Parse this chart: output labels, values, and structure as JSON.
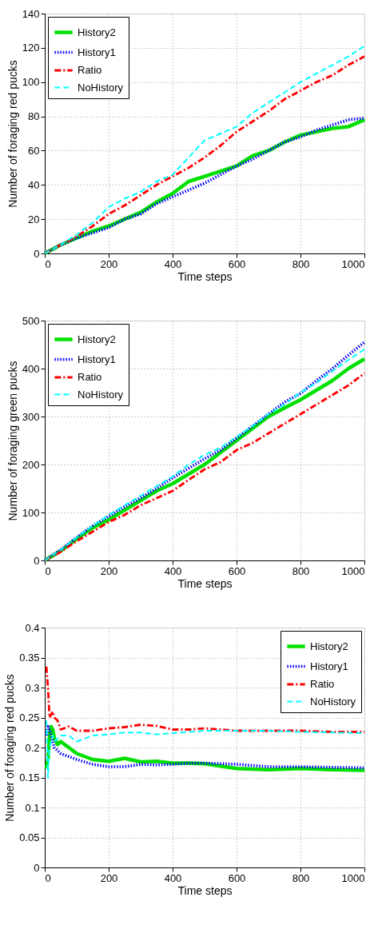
{
  "chart_data": [
    {
      "type": "line",
      "xlabel": "Time steps",
      "ylabel": "Number of foraging red pucks",
      "xlim": [
        0,
        1000
      ],
      "xticks": [
        0,
        200,
        400,
        600,
        800,
        1000
      ],
      "ylim": [
        0,
        140
      ],
      "yticks": [
        0,
        20,
        40,
        60,
        80,
        100,
        120,
        140
      ],
      "grid": true,
      "legend": "top left",
      "x": [
        0,
        50,
        100,
        150,
        200,
        250,
        300,
        350,
        400,
        450,
        500,
        550,
        600,
        650,
        700,
        750,
        800,
        850,
        900,
        950,
        1000
      ],
      "series": [
        {
          "name": "History2",
          "color": "#00e000",
          "line_style": "solid",
          "values": [
            0,
            5,
            9,
            13,
            16,
            20,
            24,
            30,
            35,
            42,
            45,
            48,
            51,
            57,
            60,
            65,
            69,
            71,
            73,
            74,
            78
          ]
        },
        {
          "name": "History1",
          "color": "#0000ff",
          "line_style": "dotted",
          "values": [
            0,
            5,
            9,
            12,
            15,
            20,
            23,
            29,
            33,
            37,
            41,
            46,
            51,
            55,
            60,
            65,
            68,
            72,
            75,
            78,
            79
          ]
        },
        {
          "name": "Ratio",
          "color": "#ff0000",
          "line_style": "dashdot",
          "values": [
            0,
            5,
            10,
            16,
            23,
            28,
            34,
            40,
            45,
            50,
            56,
            63,
            71,
            77,
            83,
            90,
            95,
            100,
            104,
            110,
            115
          ]
        },
        {
          "name": "NoHistory",
          "color": "#00ffff",
          "line_style": "dashed",
          "values": [
            0,
            5,
            11,
            18,
            27,
            32,
            36,
            42,
            46,
            56,
            66,
            70,
            74,
            82,
            88,
            94,
            100,
            105,
            110,
            115,
            121
          ]
        }
      ]
    },
    {
      "type": "line",
      "xlabel": "Time steps",
      "ylabel": "Number of foraging green pucks",
      "xlim": [
        0,
        1000
      ],
      "xticks": [
        0,
        200,
        400,
        600,
        800,
        1000
      ],
      "ylim": [
        0,
        500
      ],
      "yticks": [
        0,
        100,
        200,
        300,
        400,
        500
      ],
      "grid": true,
      "legend": "top left",
      "x": [
        0,
        50,
        100,
        150,
        200,
        250,
        300,
        350,
        400,
        450,
        500,
        550,
        600,
        650,
        700,
        750,
        800,
        850,
        900,
        950,
        1000
      ],
      "series": [
        {
          "name": "History2",
          "color": "#00e000",
          "line_style": "solid",
          "values": [
            0,
            20,
            45,
            68,
            85,
            105,
            125,
            145,
            160,
            180,
            200,
            225,
            250,
            275,
            300,
            318,
            335,
            355,
            375,
            400,
            420
          ]
        },
        {
          "name": "History1",
          "color": "#0000ff",
          "line_style": "dotted",
          "values": [
            0,
            22,
            48,
            72,
            92,
            112,
            130,
            150,
            172,
            192,
            212,
            230,
            255,
            280,
            305,
            330,
            348,
            375,
            400,
            428,
            455
          ]
        },
        {
          "name": "Ratio",
          "color": "#ff0000",
          "line_style": "dashdot",
          "values": [
            0,
            18,
            40,
            60,
            80,
            95,
            115,
            130,
            145,
            168,
            190,
            205,
            230,
            245,
            265,
            285,
            305,
            325,
            345,
            365,
            390
          ]
        },
        {
          "name": "NoHistory",
          "color": "#00ffff",
          "line_style": "dashed",
          "values": [
            0,
            22,
            48,
            72,
            95,
            115,
            135,
            155,
            175,
            200,
            220,
            235,
            258,
            280,
            305,
            325,
            350,
            370,
            395,
            418,
            440
          ]
        }
      ]
    },
    {
      "type": "line",
      "xlabel": "Time steps",
      "ylabel": "Number of foraging red pucks",
      "xlim": [
        0,
        1000
      ],
      "xticks": [
        0,
        200,
        400,
        600,
        800,
        1000
      ],
      "ylim": [
        0,
        0.4
      ],
      "yticks": [
        0,
        0.05,
        0.1,
        0.15,
        0.2,
        0.25,
        0.3,
        0.35,
        0.4
      ],
      "grid": true,
      "legend": "top right",
      "x": [
        5,
        10,
        15,
        20,
        25,
        30,
        40,
        50,
        75,
        100,
        150,
        200,
        250,
        300,
        350,
        400,
        450,
        500,
        600,
        700,
        800,
        900,
        1000
      ],
      "series": [
        {
          "name": "History2",
          "color": "#00e000",
          "line_style": "solid",
          "values": [
            0.165,
            0.18,
            0.22,
            0.235,
            0.23,
            0.215,
            0.205,
            0.21,
            0.2,
            0.19,
            0.18,
            0.177,
            0.182,
            0.176,
            0.177,
            0.174,
            0.174,
            0.173,
            0.165,
            0.163,
            0.165,
            0.163,
            0.162
          ]
        },
        {
          "name": "History1",
          "color": "#0000ff",
          "line_style": "dotted",
          "values": [
            0.22,
            0.235,
            0.23,
            0.22,
            0.21,
            0.2,
            0.195,
            0.19,
            0.185,
            0.18,
            0.172,
            0.168,
            0.168,
            0.172,
            0.171,
            0.172,
            0.174,
            0.174,
            0.172,
            0.168,
            0.168,
            0.167,
            0.166
          ]
        },
        {
          "name": "Ratio",
          "color": "#ff0000",
          "line_style": "dashdot",
          "values": [
            0.335,
            0.3,
            0.25,
            0.255,
            0.26,
            0.25,
            0.245,
            0.23,
            0.235,
            0.228,
            0.228,
            0.232,
            0.234,
            0.238,
            0.236,
            0.23,
            0.23,
            0.232,
            0.228,
            0.228,
            0.228,
            0.226,
            0.226
          ]
        },
        {
          "name": "NoHistory",
          "color": "#00ffff",
          "line_style": "dashed",
          "values": [
            0.245,
            0.15,
            0.2,
            0.21,
            0.22,
            0.21,
            0.215,
            0.22,
            0.22,
            0.21,
            0.22,
            0.222,
            0.225,
            0.225,
            0.222,
            0.224,
            0.226,
            0.228,
            0.228,
            0.228,
            0.226,
            0.225,
            0.224
          ]
        }
      ]
    }
  ]
}
